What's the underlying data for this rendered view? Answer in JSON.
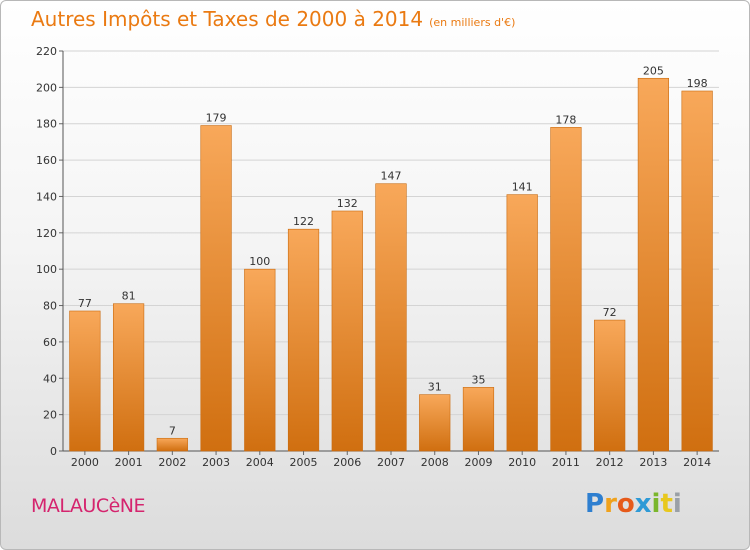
{
  "title": "Autres Impôts et Taxes de 2000 à 2014",
  "subtitle": "(en milliers d'€)",
  "town": "MALAUCèNE",
  "logo": {
    "letters": [
      "P",
      "r",
      "o",
      "x",
      "i",
      "t",
      "i"
    ],
    "colors": [
      "#2e7fd0",
      "#f0a21c",
      "#e65a1a",
      "#2e9ad6",
      "#7ab62c",
      "#e8c81e",
      "#9aa0a6"
    ]
  },
  "colors": {
    "bar_light": "#f8a85a",
    "bar_dark": "#d06f10",
    "title": "#ea7a12",
    "town": "#d5246e"
  },
  "chart_data": {
    "type": "bar",
    "categories": [
      "2000",
      "2001",
      "2002",
      "2003",
      "2004",
      "2005",
      "2006",
      "2007",
      "2008",
      "2009",
      "2010",
      "2011",
      "2012",
      "2013",
      "2014"
    ],
    "values": [
      77,
      81,
      7,
      179,
      100,
      122,
      132,
      147,
      31,
      35,
      141,
      178,
      72,
      205,
      198
    ],
    "ylim": [
      0,
      220
    ],
    "yticks": [
      0,
      20,
      40,
      60,
      80,
      100,
      120,
      140,
      160,
      180,
      200,
      220
    ],
    "grid": true
  }
}
